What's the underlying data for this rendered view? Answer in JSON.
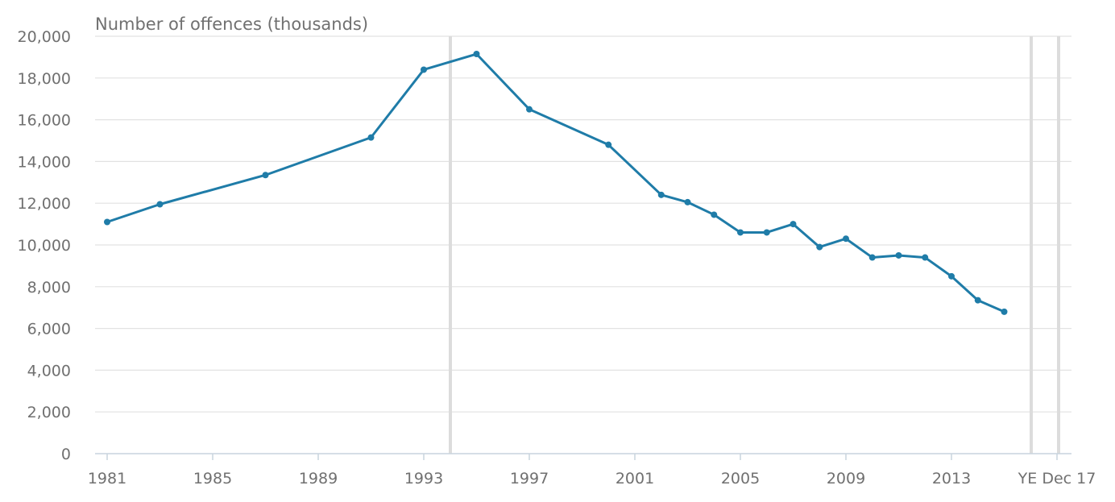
{
  "chart_data": {
    "type": "line",
    "title": "",
    "xlabel": "",
    "ylabel": "Number of offences (thousands)",
    "ylim": [
      0,
      20000
    ],
    "y_ticks": [
      "0",
      "2,000",
      "4,000",
      "6,000",
      "8,000",
      "10,000",
      "12,000",
      "14,000",
      "16,000",
      "18,000",
      "20,000"
    ],
    "x_ticks": [
      "1981",
      "1985",
      "1989",
      "1993",
      "1997",
      "2001",
      "2005",
      "2009",
      "2013",
      "YE Dec 17"
    ],
    "grid": true,
    "legend": "none",
    "series": [
      {
        "x": [
          1981,
          1983,
          1987,
          1991,
          1993,
          1995,
          1997,
          2000,
          2002,
          2003,
          2004,
          2005,
          2006,
          2007,
          2008,
          2009,
          2010,
          2011,
          2012,
          2013,
          2014,
          2015
        ],
        "values": [
          11100,
          11950,
          13350,
          15150,
          18400,
          19150,
          16500,
          14800,
          12400,
          12050,
          11450,
          10600,
          10600,
          11000,
          9900,
          10300,
          9400,
          9500,
          9400,
          8500,
          7350,
          6800
        ]
      }
    ],
    "series_color": "#1f7ca8",
    "grid_color": "#e2e2e2",
    "break_line_color": "#dcdcdc"
  }
}
